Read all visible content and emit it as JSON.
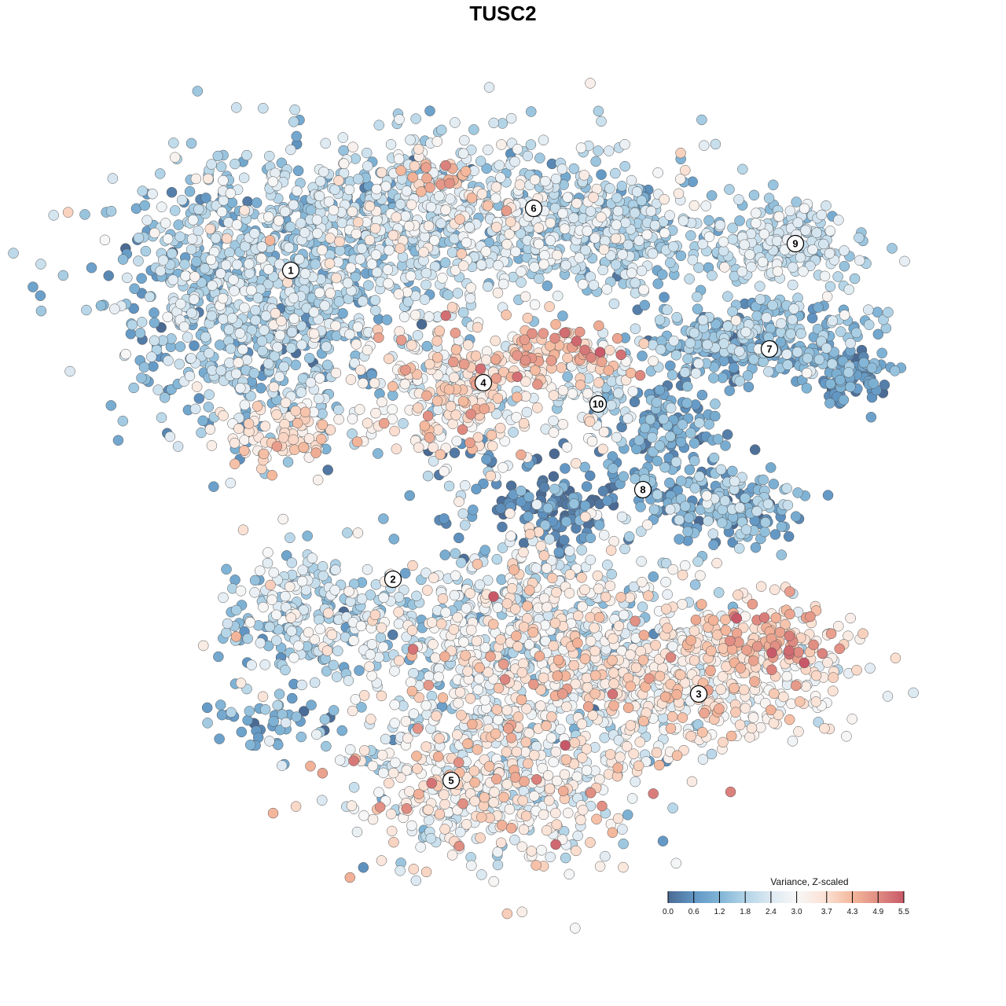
{
  "chart_data": {
    "type": "scatter",
    "title": "TUSC2",
    "xlabel": "",
    "ylabel": "",
    "grid": false,
    "legend": {
      "title": "Variance, Z-scaled",
      "placement": "bottom-right",
      "range": [
        0.0,
        5.5
      ],
      "ticks": [
        "0.0",
        "0.6",
        "1.2",
        "1.8",
        "2.4",
        "3.0",
        "3.7",
        "4.3",
        "4.9",
        "5.5"
      ],
      "tick_values": [
        0.0,
        0.6,
        1.2,
        1.8,
        2.4,
        3.0,
        3.7,
        4.3,
        4.9,
        5.5
      ],
      "colors": [
        "#4a6a93",
        "#6196c4",
        "#80b4d6",
        "#b2d4e7",
        "#dce9f2",
        "#f7f7f7",
        "#fbe0d2",
        "#f4b79b",
        "#e08c82",
        "#c85868"
      ]
    },
    "clusters": [
      {
        "label": "1",
        "x": -27.0,
        "y": 29.6
      },
      {
        "label": "2",
        "x": -14.0,
        "y": -9.7
      },
      {
        "label": "3",
        "x": 24.9,
        "y": -24.3
      },
      {
        "label": "4",
        "x": -2.5,
        "y": 15.3
      },
      {
        "label": "5",
        "x": -6.6,
        "y": -35.3
      },
      {
        "label": "6",
        "x": 3.9,
        "y": 37.5
      },
      {
        "label": "7",
        "x": 33.9,
        "y": 19.6
      },
      {
        "label": "8",
        "x": 17.8,
        "y": 1.7
      },
      {
        "label": "9",
        "x": 37.2,
        "y": 33.0
      },
      {
        "label": "10",
        "x": 12.1,
        "y": 12.6
      }
    ],
    "point_groups": [
      {
        "x": -31,
        "y": 26,
        "sx": 12,
        "sy": 11,
        "n": 900,
        "mean": 1.6,
        "sd": 0.7
      },
      {
        "x": -28.5,
        "y": 8.5,
        "sx": 5,
        "sy": 2.5,
        "n": 90,
        "mean": 3.6,
        "sd": 0.4
      },
      {
        "x": -8,
        "y": 36,
        "sx": 20,
        "sy": 7,
        "n": 900,
        "mean": 2.2,
        "sd": 0.7
      },
      {
        "x": 12,
        "y": 35,
        "sx": 8,
        "sy": 4,
        "n": 250,
        "mean": 1.6,
        "sd": 0.6
      },
      {
        "x": -9,
        "y": 41.5,
        "sx": 3,
        "sy": 1.5,
        "n": 20,
        "mean": 4.3,
        "sd": 0.4
      },
      {
        "x": 35,
        "y": 33,
        "sx": 7,
        "sy": 3.5,
        "n": 220,
        "mean": 2.0,
        "sd": 0.5
      },
      {
        "x": 31,
        "y": 21,
        "sx": 10,
        "sy": 3.5,
        "n": 320,
        "mean": 1.3,
        "sd": 0.6
      },
      {
        "x": 44,
        "y": 16,
        "sx": 4,
        "sy": 2.5,
        "n": 90,
        "mean": 0.6,
        "sd": 0.4
      },
      {
        "x": -6,
        "y": 14,
        "sx": 8,
        "sy": 6,
        "n": 320,
        "mean": 3.2,
        "sd": 0.8
      },
      {
        "x": 7,
        "y": 19.5,
        "sx": 6,
        "sy": 2.5,
        "n": 90,
        "mean": 4.2,
        "sd": 0.6
      },
      {
        "x": 12,
        "y": 14,
        "sx": 4,
        "sy": 5,
        "n": 80,
        "mean": 2.4,
        "sd": 0.7
      },
      {
        "x": 21,
        "y": 8,
        "sx": 5,
        "sy": 6,
        "n": 160,
        "mean": 1.0,
        "sd": 0.5
      },
      {
        "x": 29,
        "y": -0.5,
        "sx": 6,
        "sy": 3,
        "n": 170,
        "mean": 1.2,
        "sd": 0.6
      },
      {
        "x": 7,
        "y": -0.5,
        "sx": 5,
        "sy": 3,
        "n": 110,
        "mean": 0.4,
        "sd": 0.4
      },
      {
        "x": -24,
        "y": -14,
        "sx": 8,
        "sy": 6,
        "n": 260,
        "mean": 2.0,
        "sd": 0.8
      },
      {
        "x": 25,
        "y": -21,
        "sx": 13,
        "sy": 6,
        "n": 500,
        "mean": 3.2,
        "sd": 0.6
      },
      {
        "x": 35,
        "y": -17,
        "sx": 4,
        "sy": 3,
        "n": 60,
        "mean": 4.5,
        "sd": 0.5
      },
      {
        "x": 4,
        "y": -18,
        "sx": 13,
        "sy": 10,
        "n": 850,
        "mean": 2.6,
        "sd": 0.9
      },
      {
        "x": -2,
        "y": -36,
        "sx": 12,
        "sy": 7,
        "n": 520,
        "mean": 2.9,
        "sd": 0.8
      },
      {
        "x": -29,
        "y": -28,
        "sx": 6,
        "sy": 3,
        "n": 50,
        "mean": 1.0,
        "sd": 0.4
      },
      {
        "x": 0,
        "y": 2,
        "sx": 12,
        "sy": 6,
        "n": 40,
        "mean": 0.5,
        "sd": 0.4
      }
    ]
  }
}
